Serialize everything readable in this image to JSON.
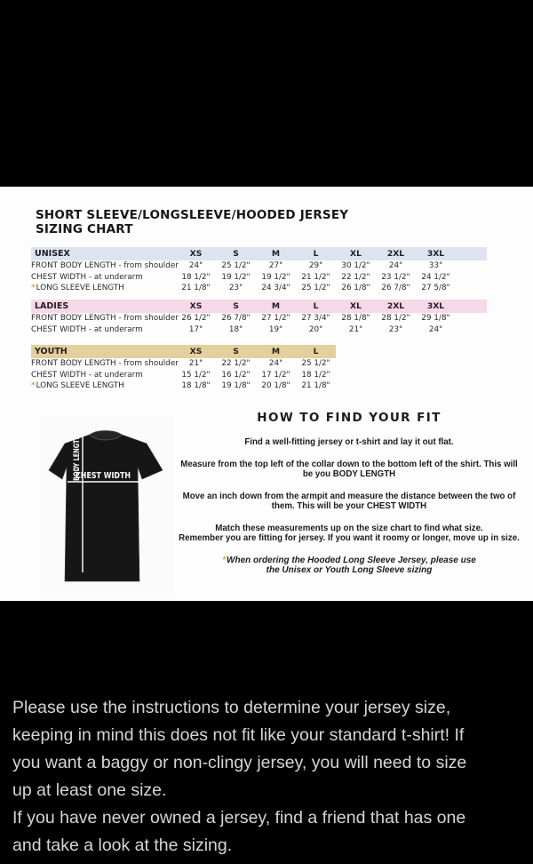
{
  "chart": {
    "title_line1": "SHORT SLEEVE/LONGSLEEVE/HOODED JERSEY",
    "title_line2": "SIZING CHART",
    "asterisk": "*",
    "asterisk_color": "#e09b3a",
    "tables": [
      {
        "name": "UNISEX",
        "header_color": "#dde3f1",
        "sizes": [
          "XS",
          "S",
          "M",
          "L",
          "XL",
          "2XL",
          "3XL"
        ],
        "rows": [
          {
            "label": "FRONT BODY LENGTH - from shoulder",
            "asterisk": false,
            "values": [
              "24\"",
              "25 1/2\"",
              "27\"",
              "29\"",
              "30 1/2\"",
              "24\"",
              "33\""
            ]
          },
          {
            "label": "CHEST WIDTH - at underarm",
            "asterisk": false,
            "values": [
              "18 1/2\"",
              "19 1/2\"",
              "19 1/2\"",
              "21 1/2\"",
              "22 1/2\"",
              "23 1/2\"",
              "24 1/2\""
            ]
          },
          {
            "label": "LONG SLEEVE LENGTH",
            "asterisk": true,
            "values": [
              "21 1/8\"",
              "23\"",
              "24 3/4\"",
              "25 1/2\"",
              "26 1/8\"",
              "26 7/8\"",
              "27 5/8\""
            ]
          }
        ]
      },
      {
        "name": "LADIES",
        "header_color": "#f8d7e9",
        "sizes": [
          "XS",
          "S",
          "M",
          "L",
          "XL",
          "2XL",
          "3XL"
        ],
        "rows": [
          {
            "label": "FRONT BODY LENGTH - from shoulder",
            "asterisk": false,
            "values": [
              "26 1/2\"",
              "26 7/8\"",
              "27 1/2\"",
              "27 3/4\"",
              "28 1/8\"",
              "28 1/2\"",
              "29 1/8\""
            ]
          },
          {
            "label": "CHEST WIDTH - at underarm",
            "asterisk": false,
            "values": [
              "17\"",
              "18\"",
              "19\"",
              "20\"",
              "21\"",
              "23\"",
              "24\""
            ]
          }
        ]
      },
      {
        "name": "YOUTH",
        "header_color": "#e4cf9d",
        "sizes": [
          "XS",
          "S",
          "M",
          "L"
        ],
        "rows": [
          {
            "label": "FRONT BODY LENGTH - from shoulder",
            "asterisk": false,
            "values": [
              "21\"",
              "22 1/2\"",
              "24\"",
              "25 1/2\""
            ]
          },
          {
            "label": "CHEST WIDTH - at underarm",
            "asterisk": false,
            "values": [
              "15 1/2\"",
              "16 1/2\"",
              "17 1/2\"",
              "18 1/2\""
            ]
          },
          {
            "label": "LONG SLEEVE LENGTH",
            "asterisk": true,
            "values": [
              "18 1/8\"",
              "19 1/8\"",
              "20 1/8\"",
              "21 1/8\""
            ]
          }
        ]
      }
    ]
  },
  "fit_guide": {
    "title": "HOW TO FIND YOUR FIT",
    "paragraphs": [
      [
        "Find a well-fitting jersey or t-shirt and lay it out flat."
      ],
      [
        "Measure from the top left of the collar down to the bottom left of the shirt. This will",
        "be you BODY LENGTH"
      ],
      [
        "Move an inch down from the armpit and measure the distance between the two of",
        "them. This will be your CHEST WIDTH"
      ],
      [
        "Match these measurements up on the size chart to find what size.",
        "Remember you are fitting for jersey. If you want it roomy or longer, move up in size."
      ]
    ],
    "note_asterisk": "*",
    "note_lines": [
      "When ordering the Hooded Long Sleeve Jersey, please use",
      "the Unisex or Youth Long Sleeve sizing"
    ]
  },
  "tshirt": {
    "body_length_label": "BODY LENGTH",
    "chest_width_label": "CHEST WIDTH"
  },
  "caption": {
    "text_color": "#d5d5d7",
    "lines": [
      "Please use the instructions to determine your jersey size,",
      "keeping in mind this does not fit like your standard t-shirt! If",
      "you want a baggy or non-clingy jersey, you will need to size",
      "up at least one size.",
      "If you have never owned a jersey, find a friend that has one",
      "and take a look at the sizing."
    ]
  }
}
